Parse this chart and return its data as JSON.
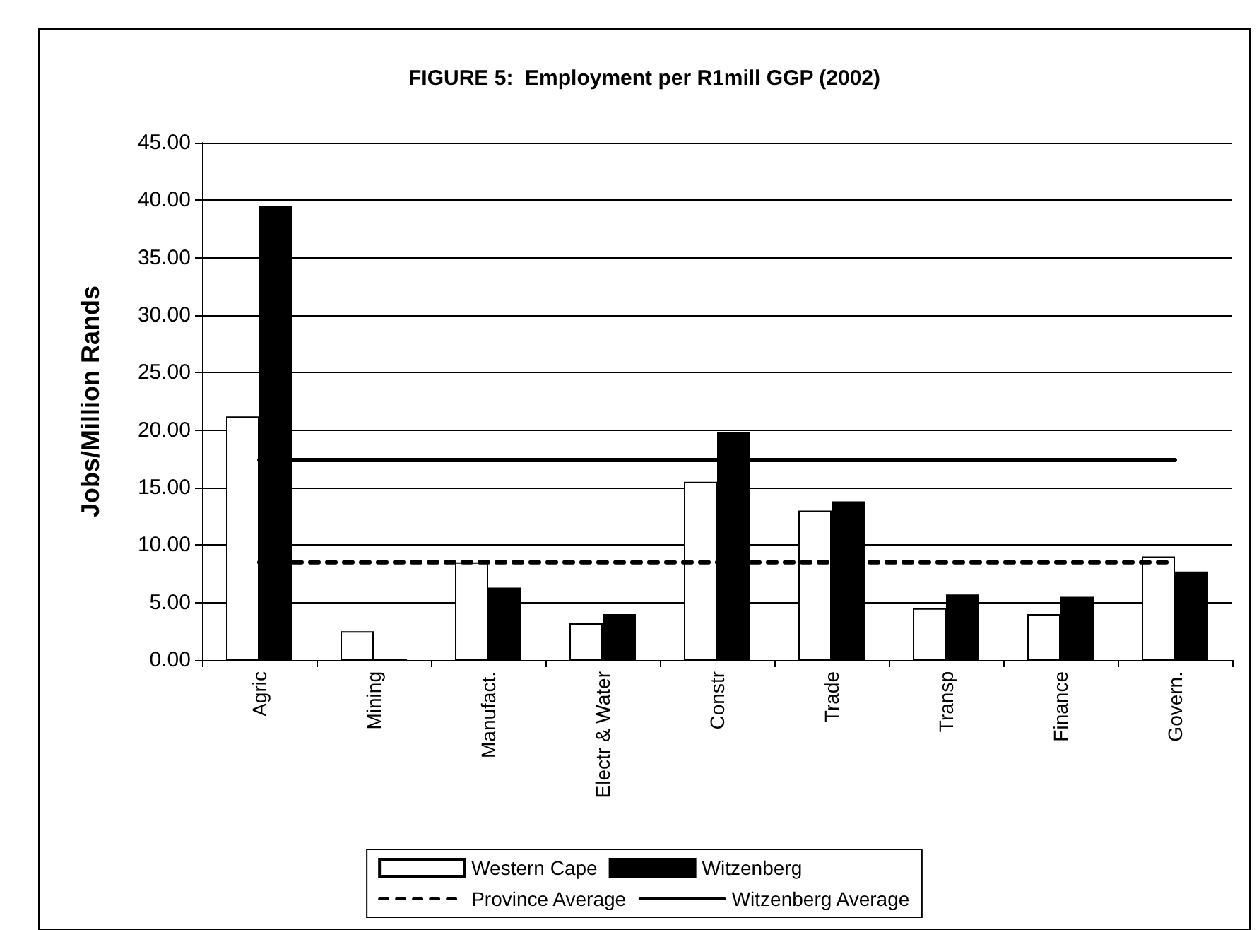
{
  "chart_data": {
    "type": "bar",
    "title": "FIGURE 5:  Employment per R1mill GGP (2002)",
    "ylabel": "Jobs/Million Rands",
    "categories": [
      "Agric",
      "Mining",
      "Manufact.",
      "Electr & Water",
      "Constr",
      "Trade",
      "Transp",
      "Finance",
      "Govern."
    ],
    "series": [
      {
        "name": "Western Cape",
        "color": "#ffffff",
        "values": [
          21.2,
          2.5,
          8.5,
          3.2,
          15.5,
          13.0,
          4.5,
          4.0,
          9.0
        ]
      },
      {
        "name": "Witzenberg",
        "color": "#000000",
        "values": [
          39.5,
          0,
          6.3,
          4.0,
          19.8,
          13.8,
          5.7,
          5.5,
          7.7
        ]
      },
      {
        "name": "Province Average",
        "type": "line",
        "color": "#000000",
        "line_style": "dashed",
        "marker": "none",
        "values": [
          8.5,
          8.5,
          8.5,
          8.5,
          8.5,
          8.5,
          8.5,
          8.5,
          8.5
        ]
      },
      {
        "name": "Witzenberg Average",
        "type": "line",
        "color": "#000000",
        "line_style": "solid",
        "marker": "none",
        "values": [
          17.4,
          17.4,
          17.4,
          17.4,
          17.4,
          17.4,
          17.4,
          17.4,
          17.4
        ]
      }
    ],
    "ylim": [
      0,
      45
    ],
    "yticks": [
      {
        "value": 0,
        "label": "0.00"
      },
      {
        "value": 5,
        "label": "5.00"
      },
      {
        "value": 10,
        "label": "10.00"
      },
      {
        "value": 15,
        "label": "15.00"
      },
      {
        "value": 20,
        "label": "20.00"
      },
      {
        "value": 25,
        "label": "25.00"
      },
      {
        "value": 30,
        "label": "30.00"
      },
      {
        "value": 35,
        "label": "35.00"
      },
      {
        "value": 40,
        "label": "40.00"
      },
      {
        "value": 45,
        "label": "45.00"
      }
    ],
    "grid": "y",
    "legend": "bottom"
  }
}
